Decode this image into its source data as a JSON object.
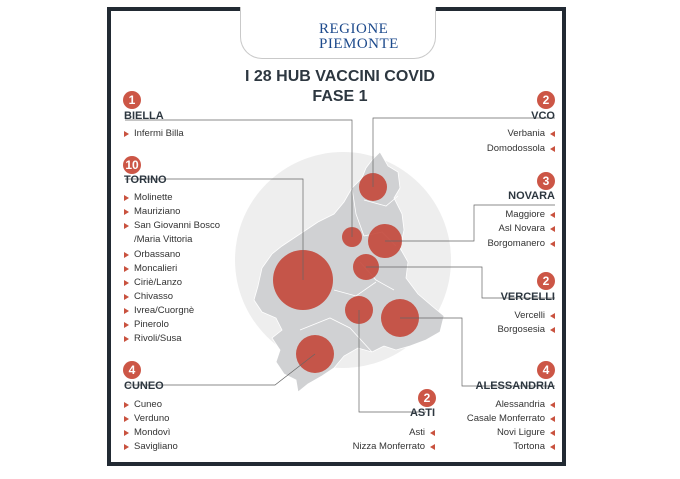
{
  "header": {
    "logo_line1": "REGIONE",
    "logo_line2": "PIEMONTE"
  },
  "title": {
    "line1": "I 28 HUB VACCINI COVID",
    "line2": "FASE 1"
  },
  "colors": {
    "accent": "#cc5646",
    "map_fill": "#d0d1d3",
    "frame": "#222a33"
  },
  "provinces": {
    "biella": {
      "count": "1",
      "name": "BIELLA",
      "hubs": [
        "Infermi Billa"
      ]
    },
    "torino": {
      "count": "10",
      "name": "TORINO",
      "hubs": [
        "Molinette",
        "Mauriziano",
        "San Giovanni Bosco",
        "/Maria Vittoria",
        "Orbassano",
        "Moncalieri",
        "Ciriè/Lanzo",
        "Chivasso",
        "Ivrea/Cuorgnè",
        "Pinerolo",
        "Rivoli/Susa"
      ]
    },
    "cuneo": {
      "count": "4",
      "name": "CUNEO",
      "hubs": [
        "Cuneo",
        "Verduno",
        "Mondovì",
        "Savigliano"
      ]
    },
    "vco": {
      "count": "2",
      "name": "VCO",
      "hubs": [
        "Verbania",
        "Domodossola"
      ]
    },
    "novara": {
      "count": "3",
      "name": "NOVARA",
      "hubs": [
        "Maggiore",
        "Asl Novara",
        "Borgomanero"
      ]
    },
    "vercelli": {
      "count": "2",
      "name": "VERCELLI",
      "hubs": [
        "Vercelli",
        "Borgosesia"
      ]
    },
    "alessandria": {
      "count": "4",
      "name": "ALESSANDRIA",
      "hubs": [
        "Alessandria",
        "Casale Monferrato",
        "Novi Ligure",
        "Tortona"
      ]
    },
    "asti": {
      "count": "2",
      "name": "ASTI",
      "hubs": [
        "Asti",
        "Nizza Monferrato"
      ]
    }
  }
}
